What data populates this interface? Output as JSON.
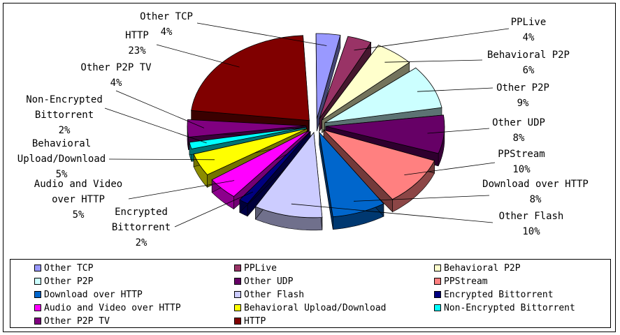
{
  "chart_data": {
    "type": "pie",
    "title": "",
    "slices": [
      {
        "name": "Other TCP",
        "label": "Other TCP",
        "pct": "4%",
        "value": 4,
        "color": "#9999ff"
      },
      {
        "name": "PPLive",
        "label": "PPLive",
        "pct": "4%",
        "value": 4,
        "color": "#993366"
      },
      {
        "name": "Behavioral P2P",
        "label": "Behavioral P2P",
        "pct": "6%",
        "value": 6,
        "color": "#ffffcc"
      },
      {
        "name": "Other P2P",
        "label": "Other P2P",
        "pct": "9%",
        "value": 9,
        "color": "#ccffff"
      },
      {
        "name": "Other UDP",
        "label": "Other UDP",
        "pct": "8%",
        "value": 8,
        "color": "#660066"
      },
      {
        "name": "PPStream",
        "label": "PPStream",
        "pct": "10%",
        "value": 10,
        "color": "#ff8080"
      },
      {
        "name": "Download over HTTP",
        "label": "Download over HTTP",
        "pct": "8%",
        "value": 8,
        "color": "#0066cc"
      },
      {
        "name": "Other Flash",
        "label": "Other Flash",
        "pct": "10%",
        "value": 10,
        "color": "#ccccff"
      },
      {
        "name": "Encrypted Bittorrent",
        "label": "Encrypted\nBittorrent",
        "pct": "2%",
        "value": 2,
        "color": "#000080"
      },
      {
        "name": "Audio and Video over HTTP",
        "label": "Audio and Video\nover HTTP",
        "pct": "5%",
        "value": 5,
        "color": "#ff00ff"
      },
      {
        "name": "Behavioral Upload/Download",
        "label": "Behavioral\nUpload/Download",
        "pct": "5%",
        "value": 5,
        "color": "#ffff00"
      },
      {
        "name": "Non-Encrypted Bittorrent",
        "label": "Non-Encrypted\nBittorrent",
        "pct": "2%",
        "value": 2,
        "color": "#00ffff"
      },
      {
        "name": "Other P2P TV",
        "label": "Other P2P TV",
        "pct": "4%",
        "value": 4,
        "color": "#800080"
      },
      {
        "name": "HTTP",
        "label": "HTTP",
        "pct": "23%",
        "value": 23,
        "color": "#800000"
      }
    ],
    "legend_position": "bottom"
  }
}
